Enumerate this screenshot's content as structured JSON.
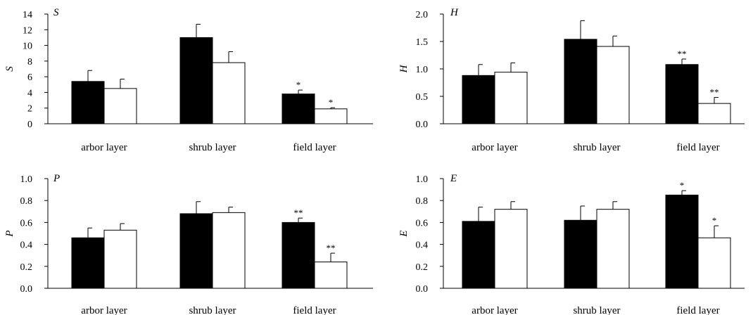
{
  "colors": {
    "series_a": "#000000",
    "series_b": "#ffffff",
    "axis": "#000000"
  },
  "chart_data": [
    {
      "type": "bar",
      "panel_label": "S",
      "ylabel": "S",
      "ylim": [
        0,
        14
      ],
      "yticks": [
        0,
        2,
        4,
        6,
        8,
        10,
        12,
        14
      ],
      "ytick_labels": [
        "0",
        "2",
        "4",
        "6",
        "8",
        "10",
        "12",
        "14"
      ],
      "categories": [
        "arbor layer",
        "shrub layer",
        "field layer"
      ],
      "series": [
        {
          "values": [
            5.4,
            11.0,
            3.8
          ],
          "errors": [
            1.4,
            1.7,
            0.5
          ],
          "sig": [
            "",
            "",
            "*"
          ]
        },
        {
          "values": [
            4.5,
            7.8,
            1.9
          ],
          "errors": [
            1.2,
            1.4,
            0.15
          ],
          "sig": [
            "",
            "",
            "*"
          ]
        }
      ]
    },
    {
      "type": "bar",
      "panel_label": "H",
      "ylabel": "H",
      "ylim": [
        0,
        2.0
      ],
      "yticks": [
        0,
        0.5,
        1.0,
        1.5,
        2.0
      ],
      "ytick_labels": [
        "0.0",
        "0.5",
        "1.0",
        "1.5",
        "2.0"
      ],
      "categories": [
        "arbor layer",
        "shrub layer",
        "field layer"
      ],
      "series": [
        {
          "values": [
            0.88,
            1.54,
            1.08
          ],
          "errors": [
            0.2,
            0.34,
            0.1
          ],
          "sig": [
            "",
            "",
            "**"
          ]
        },
        {
          "values": [
            0.94,
            1.41,
            0.37
          ],
          "errors": [
            0.17,
            0.19,
            0.11
          ],
          "sig": [
            "",
            "",
            "**"
          ]
        }
      ]
    },
    {
      "type": "bar",
      "panel_label": "P",
      "ylabel": "P",
      "ylim": [
        0,
        1.0
      ],
      "yticks": [
        0,
        0.2,
        0.4,
        0.6,
        0.8,
        1.0
      ],
      "ytick_labels": [
        "0.0",
        "0.2",
        "0.4",
        "0.6",
        "0.8",
        "1.0"
      ],
      "categories": [
        "arbor layer",
        "shrub layer",
        "field layer"
      ],
      "series": [
        {
          "values": [
            0.46,
            0.68,
            0.6
          ],
          "errors": [
            0.09,
            0.11,
            0.04
          ],
          "sig": [
            "",
            "",
            "**"
          ]
        },
        {
          "values": [
            0.53,
            0.69,
            0.24
          ],
          "errors": [
            0.06,
            0.05,
            0.08
          ],
          "sig": [
            "",
            "",
            "**"
          ]
        }
      ]
    },
    {
      "type": "bar",
      "panel_label": "E",
      "ylabel": "E",
      "ylim": [
        0,
        1.0
      ],
      "yticks": [
        0,
        0.2,
        0.4,
        0.6,
        0.8,
        1.0
      ],
      "ytick_labels": [
        "0.0",
        "0.2",
        "0.4",
        "0.6",
        "0.8",
        "1.0"
      ],
      "categories": [
        "arbor layer",
        "shrub layer",
        "field layer"
      ],
      "series": [
        {
          "values": [
            0.61,
            0.62,
            0.85
          ],
          "errors": [
            0.13,
            0.13,
            0.04
          ],
          "sig": [
            "",
            "",
            "*"
          ]
        },
        {
          "values": [
            0.72,
            0.72,
            0.46
          ],
          "errors": [
            0.07,
            0.07,
            0.11
          ],
          "sig": [
            "",
            "",
            "*"
          ]
        }
      ]
    }
  ]
}
